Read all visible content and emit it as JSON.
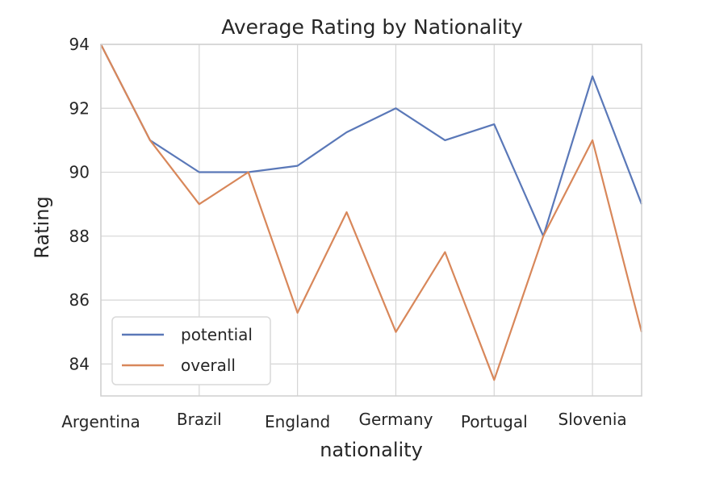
{
  "chart_data": {
    "type": "line",
    "title": "Average Rating by Nationality",
    "xlabel": "nationality",
    "ylabel": "Rating",
    "x_index_range": [
      0,
      11
    ],
    "ylim": [
      83,
      94
    ],
    "yticks": [
      84,
      86,
      88,
      90,
      92,
      94
    ],
    "xticks": [
      {
        "index": 0,
        "label": "Argentina"
      },
      {
        "index": 2,
        "label": "Brazil"
      },
      {
        "index": 4,
        "label": "England"
      },
      {
        "index": 6,
        "label": "Germany"
      },
      {
        "index": 8,
        "label": "Portugal"
      },
      {
        "index": 10,
        "label": "Slovenia"
      }
    ],
    "grid": true,
    "legend_position": "lower-left",
    "series": [
      {
        "name": "potential",
        "color": "#5a78b8",
        "values": [
          94,
          91,
          90,
          90,
          90.2,
          91.25,
          92,
          91,
          91.5,
          88,
          93,
          89
        ]
      },
      {
        "name": "overall",
        "color": "#d8875a",
        "values": [
          94,
          91,
          89,
          90,
          85.6,
          88.75,
          85,
          87.5,
          83.5,
          88,
          91,
          85
        ]
      }
    ]
  }
}
